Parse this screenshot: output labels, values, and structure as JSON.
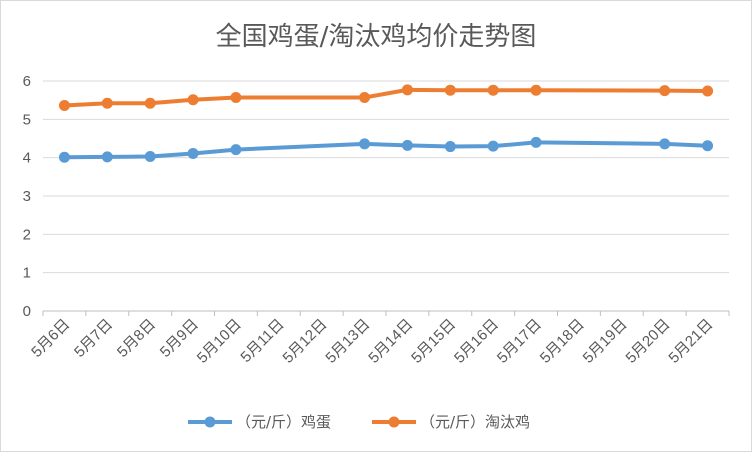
{
  "chart_data": {
    "type": "line",
    "title": "全国鸡蛋/淘汰鸡均价走势图",
    "categories": [
      "5月6日",
      "5月7日",
      "5月8日",
      "5月9日",
      "5月10日",
      "5月11日",
      "5月12日",
      "5月13日",
      "5月14日",
      "5月15日",
      "5月16日",
      "5月17日",
      "5月18日",
      "5月19日",
      "5月20日",
      "5月21日"
    ],
    "ylim": [
      0,
      6
    ],
    "yticks": [
      "0",
      "1",
      "2",
      "3",
      "4",
      "5",
      "6"
    ],
    "grid": true,
    "legend_position": "bottom",
    "series": [
      {
        "name": "（元/斤）鸡蛋",
        "color": "#5b9bd5",
        "points": [
          {
            "x": "5月6日",
            "y": 4.01
          },
          {
            "x": "5月7日",
            "y": 4.02
          },
          {
            "x": "5月8日",
            "y": 4.03
          },
          {
            "x": "5月9日",
            "y": 4.11
          },
          {
            "x": "5月10日",
            "y": 4.21
          },
          {
            "x": "5月13日",
            "y": 4.36
          },
          {
            "x": "5月14日",
            "y": 4.32
          },
          {
            "x": "5月15日",
            "y": 4.29
          },
          {
            "x": "5月16日",
            "y": 4.3
          },
          {
            "x": "5月17日",
            "y": 4.4
          },
          {
            "x": "5月20日",
            "y": 4.36
          },
          {
            "x": "5月21日",
            "y": 4.31
          }
        ]
      },
      {
        "name": "（元/斤）淘汰鸡",
        "color": "#ed7d31",
        "points": [
          {
            "x": "5月6日",
            "y": 5.36
          },
          {
            "x": "5月7日",
            "y": 5.42
          },
          {
            "x": "5月8日",
            "y": 5.42
          },
          {
            "x": "5月9日",
            "y": 5.51
          },
          {
            "x": "5月10日",
            "y": 5.57
          },
          {
            "x": "5月13日",
            "y": 5.57
          },
          {
            "x": "5月14日",
            "y": 5.77
          },
          {
            "x": "5月15日",
            "y": 5.76
          },
          {
            "x": "5月16日",
            "y": 5.76
          },
          {
            "x": "5月17日",
            "y": 5.76
          },
          {
            "x": "5月20日",
            "y": 5.75
          },
          {
            "x": "5月21日",
            "y": 5.74
          }
        ]
      }
    ]
  }
}
